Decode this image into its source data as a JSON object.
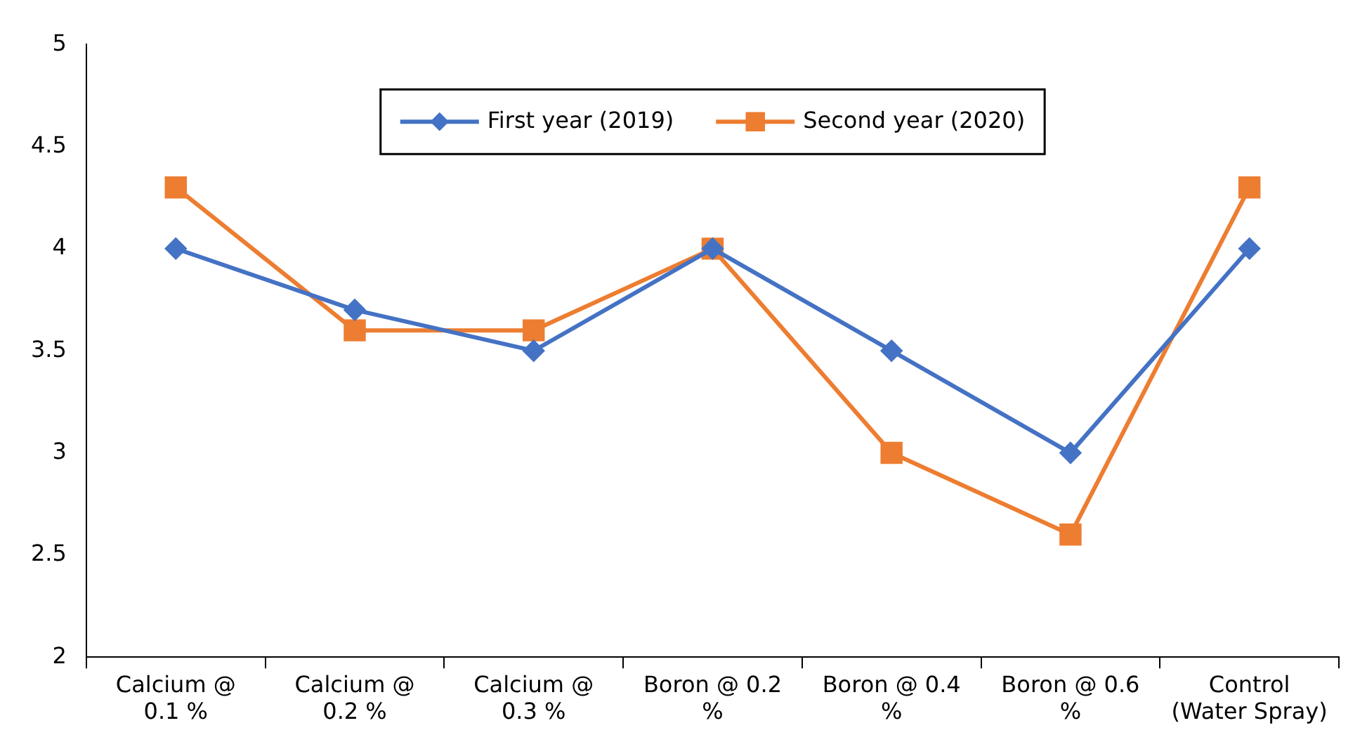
{
  "chart_data": {
    "type": "line",
    "categories": [
      "Calcium @\n0.1 %",
      "Calcium @\n0.2 %",
      "Calcium @\n0.3 %",
      "Boron @ 0.2\n%",
      "Boron @ 0.4\n%",
      "Boron @ 0.6\n%",
      "Control\n(Water Spray)"
    ],
    "series": [
      {
        "name": "First year (2019)",
        "color": "#4472c4",
        "marker": "diamond",
        "values": [
          4,
          3.7,
          3.5,
          4,
          3.5,
          3,
          4
        ]
      },
      {
        "name": "Second year (2020)",
        "color": "#ed7d31",
        "marker": "square",
        "values": [
          4.3,
          3.6,
          3.6,
          4,
          3.0,
          2.6,
          4.3
        ]
      }
    ],
    "ylim": [
      2,
      5
    ],
    "yticks": [
      2,
      2.5,
      3,
      3.5,
      4,
      4.5,
      5
    ],
    "grid": false,
    "legend": "top"
  }
}
